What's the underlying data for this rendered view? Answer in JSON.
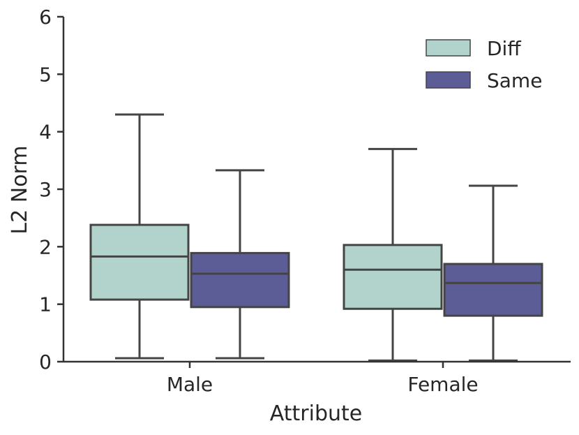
{
  "chart_data": {
    "type": "box",
    "categories": [
      "Male",
      "Female"
    ],
    "xlabel": "Attribute",
    "ylabel": "L2 Norm",
    "ylim": [
      0,
      6
    ],
    "yticks": [
      "0",
      "1",
      "2",
      "3",
      "4",
      "5",
      "6"
    ],
    "legend_position": "top-right",
    "series": [
      {
        "name": "Diff",
        "color": "#b1d3cb",
        "boxes": [
          {
            "whislo": 0.06,
            "q1": 1.08,
            "med": 1.83,
            "q3": 2.38,
            "whishi": 4.3
          },
          {
            "whislo": 0.02,
            "q1": 0.92,
            "med": 1.6,
            "q3": 2.03,
            "whishi": 3.7
          }
        ]
      },
      {
        "name": "Same",
        "color": "#5c5d96",
        "boxes": [
          {
            "whislo": 0.06,
            "q1": 0.95,
            "med": 1.53,
            "q3": 1.89,
            "whishi": 3.33
          },
          {
            "whislo": 0.02,
            "q1": 0.8,
            "med": 1.37,
            "q3": 1.7,
            "whishi": 3.06
          }
        ]
      }
    ]
  }
}
